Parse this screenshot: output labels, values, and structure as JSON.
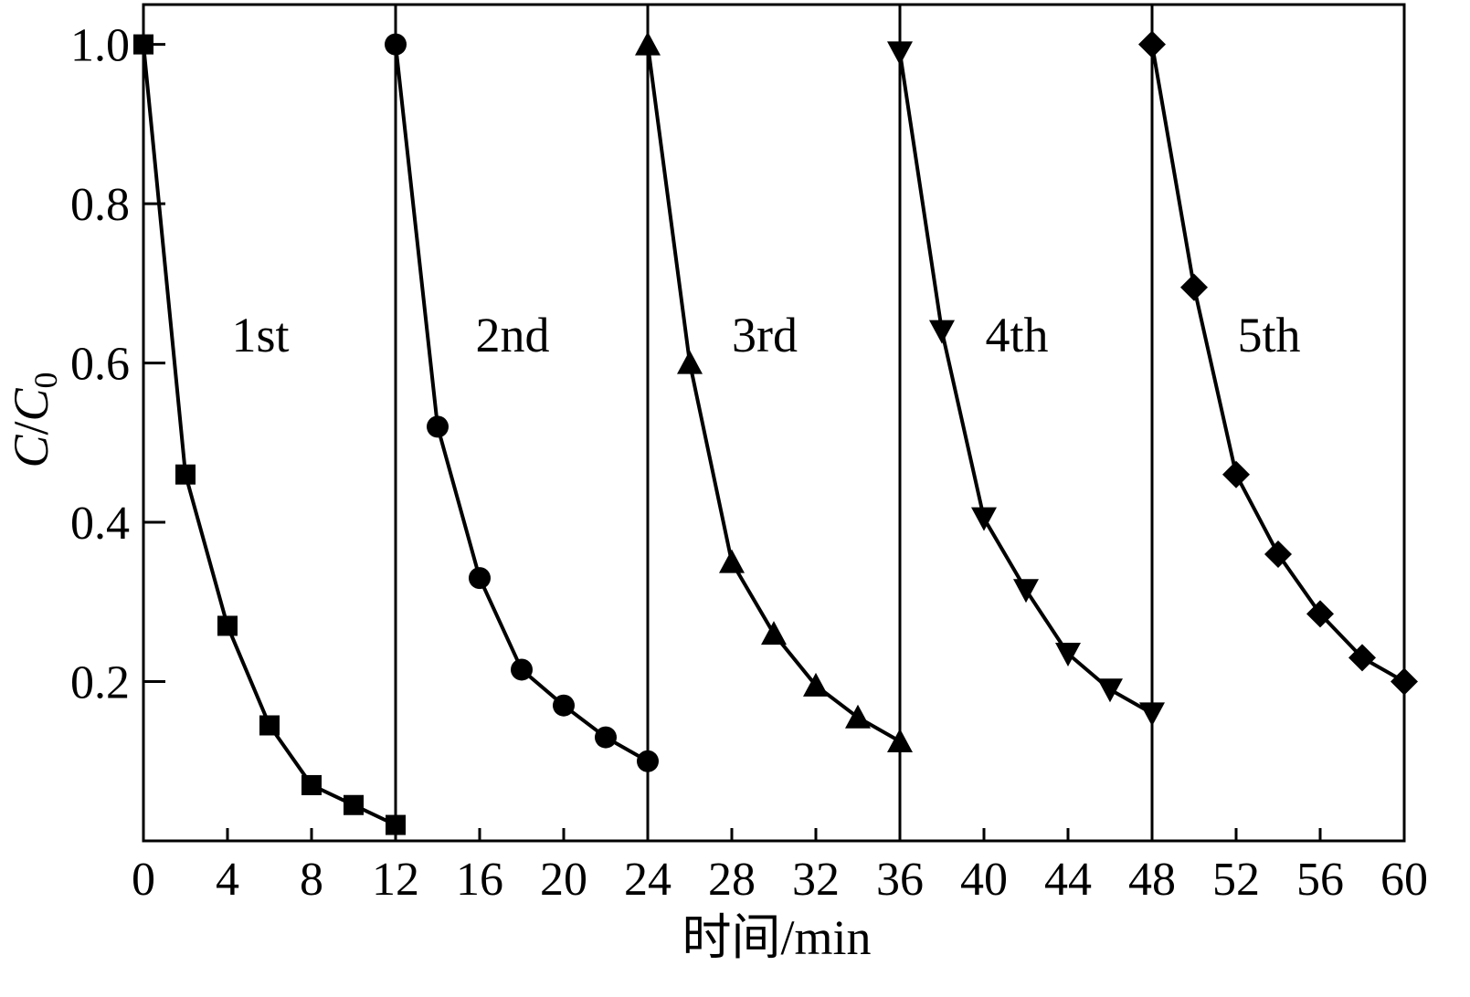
{
  "chart_data": {
    "type": "line",
    "xlabel": "时间/min",
    "ylabel_main": "C",
    "ylabel_sep": "/",
    "ylabel_den": "C",
    "ylabel_sub": "0",
    "xlim": [
      0,
      60
    ],
    "ylim": [
      0,
      1.05
    ],
    "xticks": [
      "0",
      "4",
      "8",
      "12",
      "16",
      "20",
      "24",
      "28",
      "32",
      "36",
      "40",
      "44",
      "48",
      "52",
      "56",
      "60"
    ],
    "yticks": [
      "0.2",
      "0.4",
      "0.6",
      "0.8",
      "1.0"
    ],
    "dividers": [
      12,
      24,
      36,
      48
    ],
    "grid": false,
    "legend": "none",
    "line_color": "#000000",
    "series": [
      {
        "name": "1st",
        "marker": "square",
        "x": [
          0,
          2,
          4,
          6,
          8,
          10,
          12
        ],
        "y": [
          1.0,
          0.46,
          0.27,
          0.145,
          0.07,
          0.045,
          0.02
        ]
      },
      {
        "name": "2nd",
        "marker": "circle",
        "x": [
          12,
          14,
          16,
          18,
          20,
          22,
          24
        ],
        "y": [
          1.0,
          0.52,
          0.33,
          0.215,
          0.17,
          0.13,
          0.1
        ]
      },
      {
        "name": "3rd",
        "marker": "triangle-up",
        "x": [
          24,
          26,
          28,
          30,
          32,
          34,
          36
        ],
        "y": [
          1.0,
          0.6,
          0.35,
          0.26,
          0.195,
          0.155,
          0.125
        ]
      },
      {
        "name": "4th",
        "marker": "triangle-down",
        "x": [
          36,
          38,
          40,
          42,
          44,
          46,
          48
        ],
        "y": [
          0.99,
          0.64,
          0.405,
          0.315,
          0.235,
          0.19,
          0.16
        ]
      },
      {
        "name": "5th",
        "marker": "diamond",
        "x": [
          48,
          50,
          52,
          54,
          56,
          58,
          60
        ],
        "y": [
          1.0,
          0.695,
          0.46,
          0.36,
          0.285,
          0.23,
          0.2
        ]
      }
    ]
  }
}
